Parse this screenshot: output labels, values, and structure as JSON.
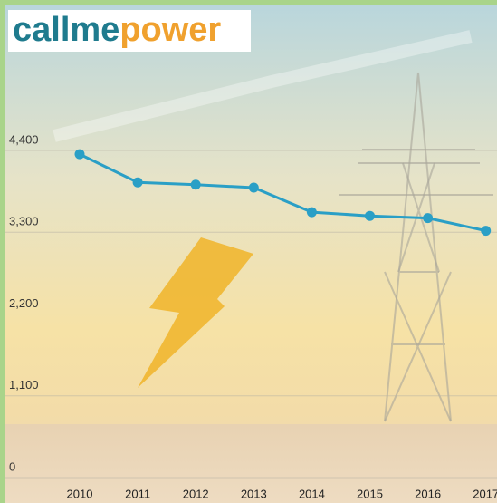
{
  "brand": [
    "callme",
    "power"
  ],
  "chart_data": {
    "type": "line",
    "categories": [
      "2010",
      "2011",
      "2012",
      "2013",
      "2014",
      "2015",
      "2016",
      "2017"
    ],
    "series": [
      {
        "color": "#2a9fc6",
        "values": [
          4350,
          3970,
          3940,
          3900,
          3570,
          3520,
          3490,
          3320
        ]
      }
    ],
    "ylim": [
      0,
      4400
    ],
    "yticks": [
      0,
      {
        "value": 1100,
        "label": "1,100"
      },
      {
        "value": 2200,
        "label": "2,200"
      },
      {
        "value": 3300,
        "label": "3,300"
      },
      {
        "value": 4400,
        "label": "4,400"
      }
    ],
    "grid": true
  }
}
